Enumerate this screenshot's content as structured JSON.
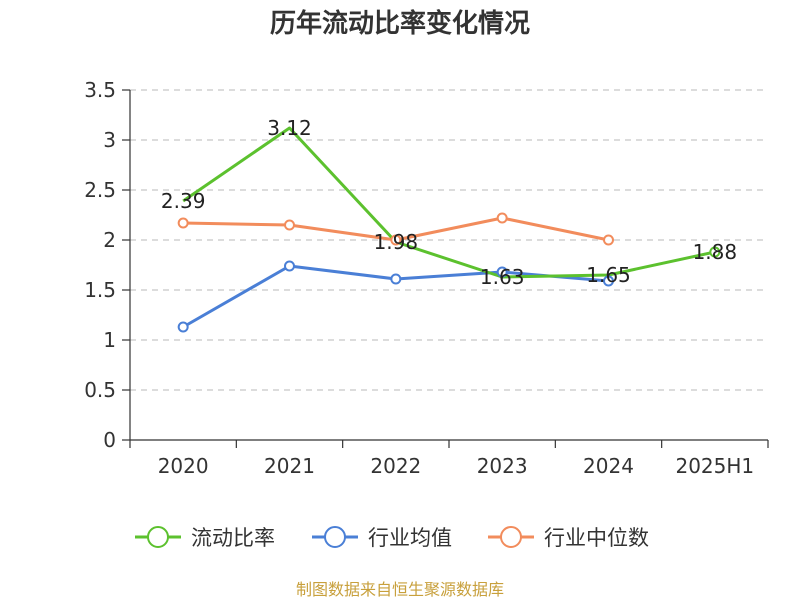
{
  "chart_data": {
    "type": "line",
    "title": "历年流动比率变化情况",
    "categories": [
      "2020",
      "2021",
      "2022",
      "2023",
      "2024",
      "2025H1"
    ],
    "y_ticks": [
      "0",
      "0.5",
      "1",
      "1.5",
      "2",
      "2.5",
      "3",
      "3.5"
    ],
    "ylim": [
      0,
      3.5
    ],
    "grid": true,
    "legend_position": "bottom",
    "series": [
      {
        "name": "流动比率",
        "color": "#5cc12e",
        "values": [
          2.39,
          3.12,
          1.98,
          1.63,
          1.65,
          1.88
        ],
        "labels": [
          "2.39",
          "3.12",
          "1.98",
          "1.63",
          "1.65",
          "1.88"
        ],
        "marker_on_last_only": true
      },
      {
        "name": "行业均值",
        "color": "#4a7fd6",
        "values": [
          1.13,
          1.74,
          1.61,
          1.68,
          1.59,
          null
        ]
      },
      {
        "name": "行业中位数",
        "color": "#f28c5c",
        "values": [
          2.17,
          2.15,
          2.0,
          2.22,
          2.0,
          null
        ]
      }
    ]
  },
  "source": "制图数据来自恒生聚源数据库"
}
